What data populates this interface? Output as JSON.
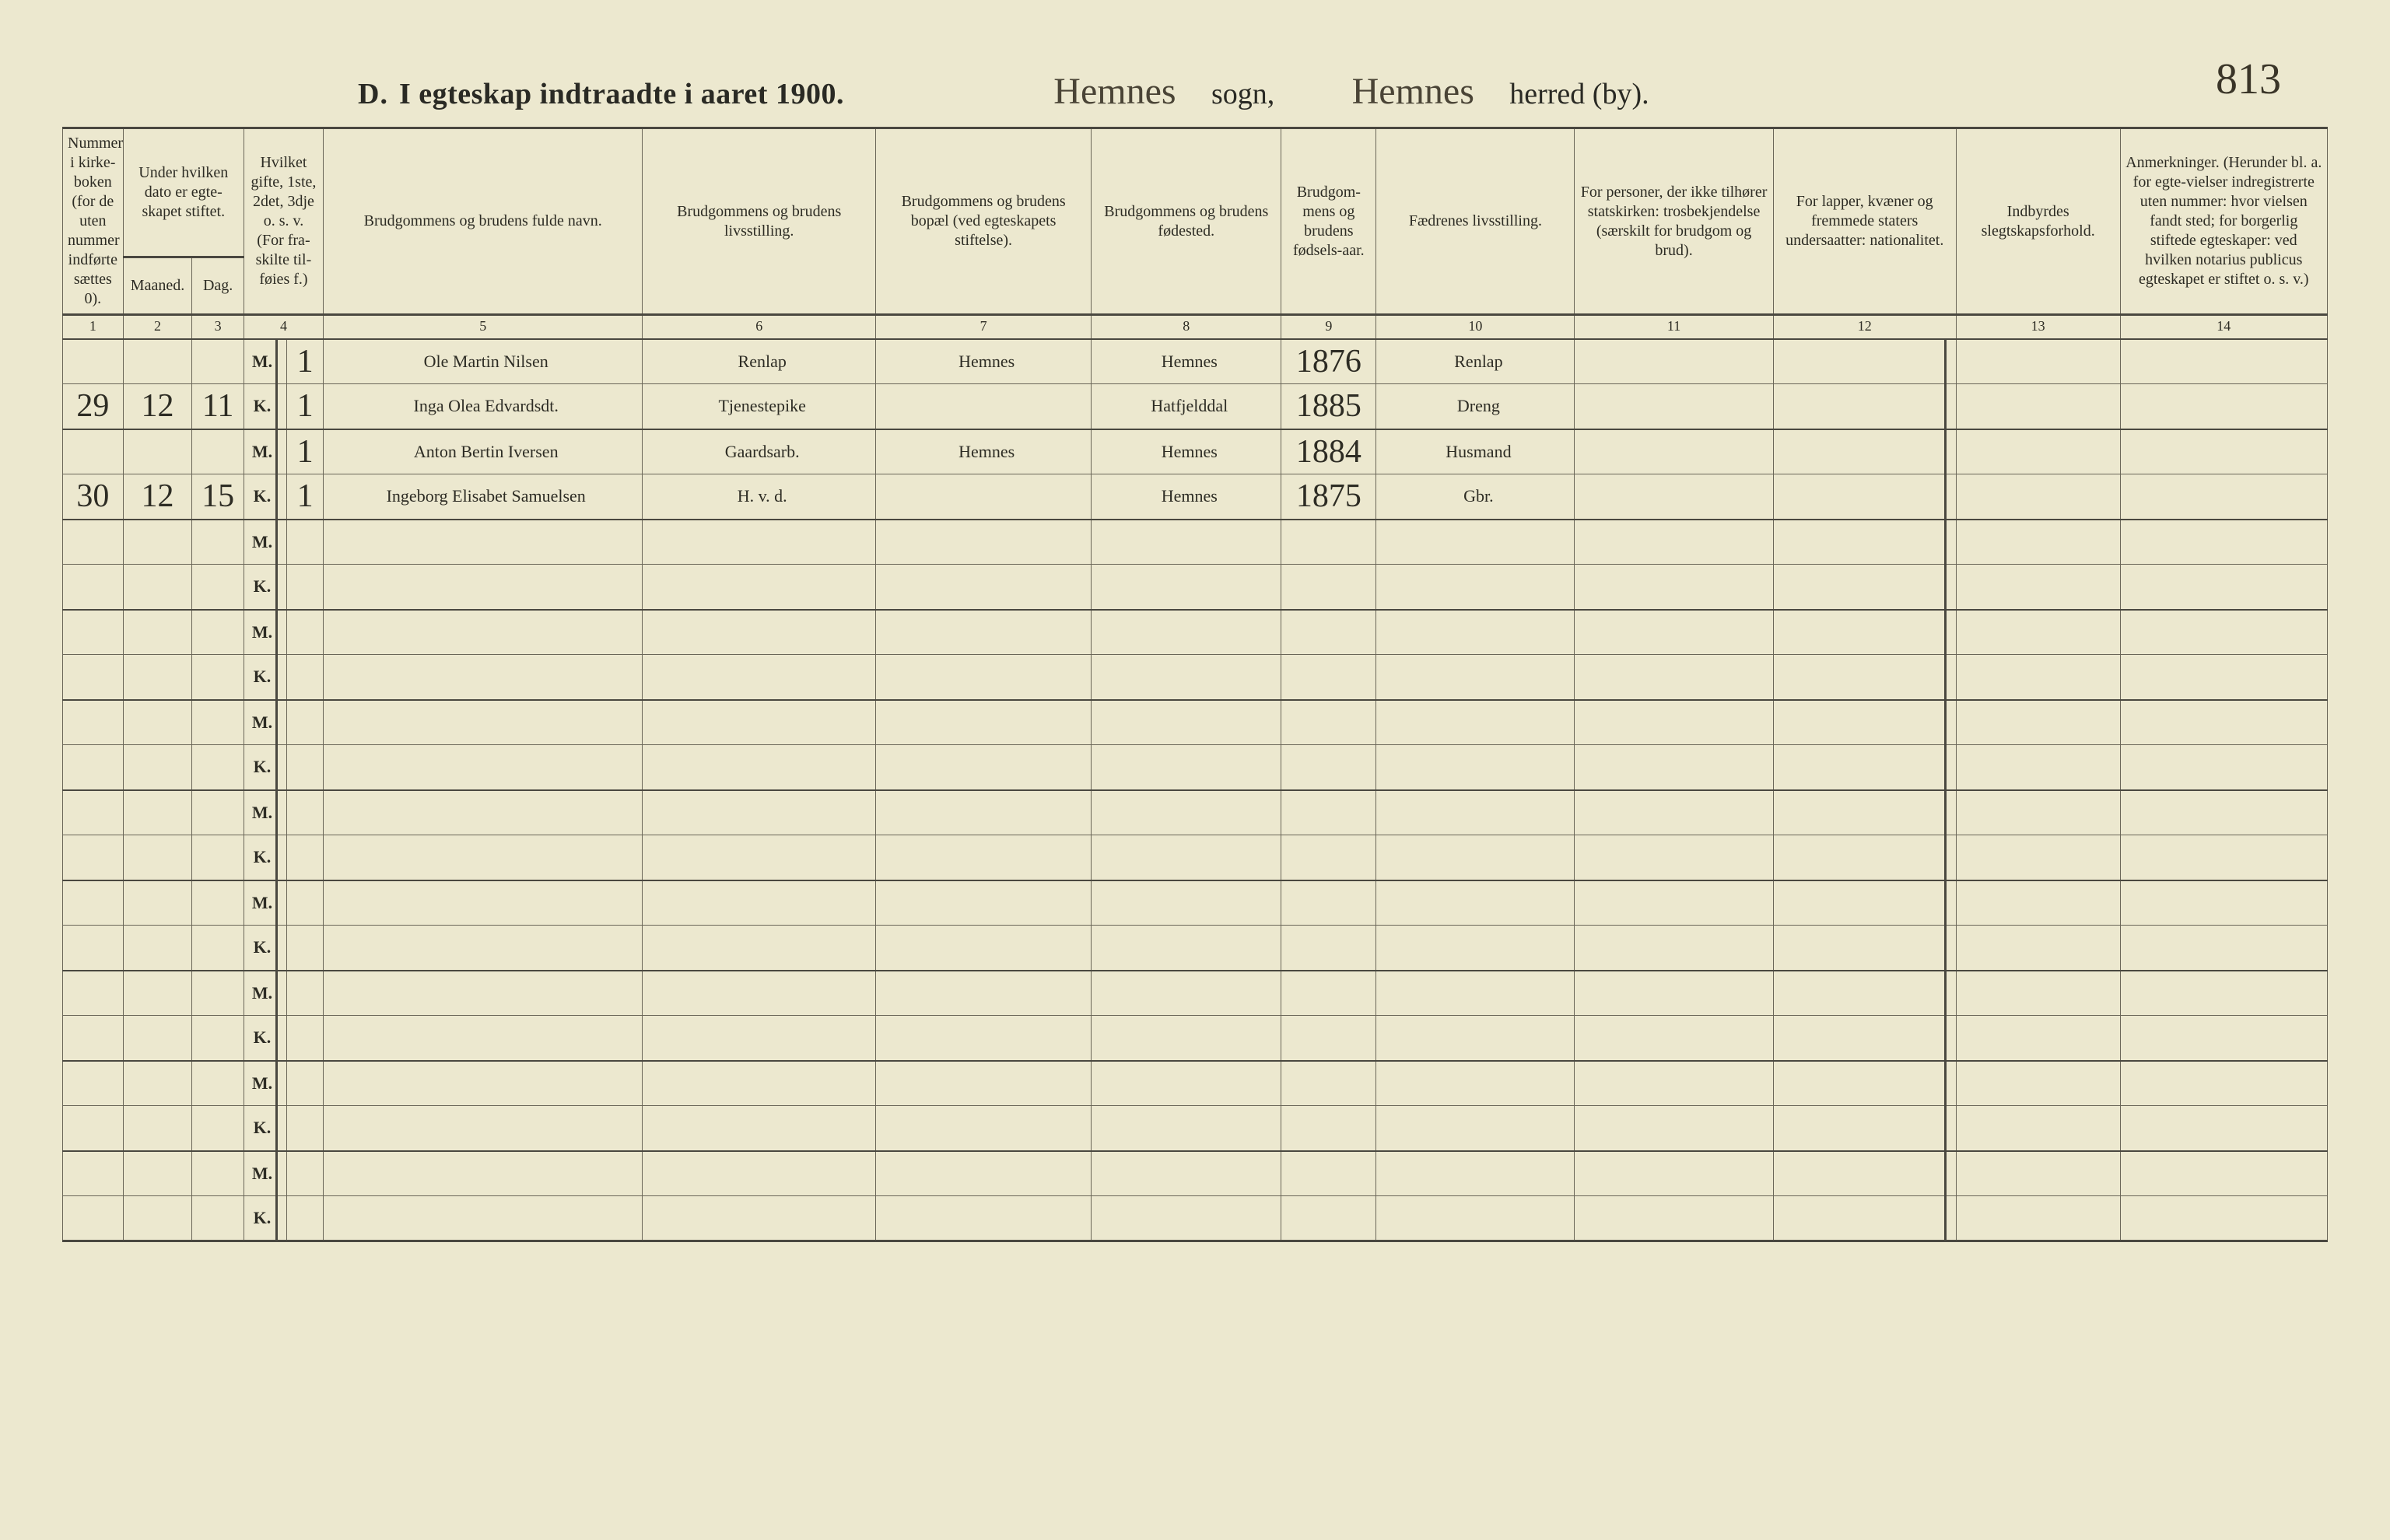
{
  "page": {
    "background_color": "#ece8cf",
    "rule_color": "#6a6658",
    "heavy_rule_color": "#4a4840",
    "text_color": "#2d2c24",
    "handwriting_color": "#3a3528",
    "page_number": "813"
  },
  "title": {
    "prefix": "D.",
    "main": "I egteskap indtraadte i aaret 19",
    "year_struck": "0",
    "year_written": "0.",
    "sogn_value": "Hemnes",
    "sogn_label": "sogn,",
    "herred_value": "Hemnes",
    "herred_label": "herred (by)."
  },
  "headers": {
    "c1": "Nummer i kirke-boken (for de uten nummer indførte sættes 0).",
    "c23_top": "Under hvilken dato er egte-skapet stiftet.",
    "c2": "Maaned.",
    "c3": "Dag.",
    "c4": "Hvilket gifte, 1ste, 2det, 3dje o. s. v. (For fra-skilte til-føies f.)",
    "c5": "Brudgommens og brudens fulde navn.",
    "c6": "Brudgommens og brudens livsstilling.",
    "c7": "Brudgommens og brudens bopæl (ved egteskapets stiftelse).",
    "c8": "Brudgommens og brudens fødested.",
    "c9": "Brudgom-mens og brudens fødsels-aar.",
    "c10": "Fædrenes livsstilling.",
    "c11": "For personer, der ikke tilhører statskirken: trosbekjendelse (særskilt for brudgom og brud).",
    "c12": "For lapper, kvæner og fremmede staters undersaatter: nationalitet.",
    "c13": "Indbyrdes slegtskapsforhold.",
    "c14": "Anmerkninger. (Herunder bl. a. for egte-vielser indregistrerte uten nummer: hvor vielsen fandt sted; for borgerlig stiftede egteskaper: ved hvilken notarius publicus egteskapet er stiftet o. s. v.)"
  },
  "colnums": [
    "1",
    "2",
    "3",
    "4",
    "5",
    "6",
    "7",
    "8",
    "9",
    "10",
    "11",
    "12",
    "13",
    "14"
  ],
  "rows": [
    {
      "num": "",
      "maaned": "",
      "dag": "",
      "mk": "M.",
      "gifte": "1",
      "navn": "Ole Martin Nilsen",
      "stilling": "Renlap",
      "bopel": "Hemnes",
      "fodested": "Hemnes",
      "aar": "1876",
      "faedre": "Renlap",
      "c11": "",
      "c12": "",
      "c13": "",
      "c14": ""
    },
    {
      "num": "29",
      "maaned": "12",
      "dag": "11",
      "mk": "K.",
      "gifte": "1",
      "navn": "Inga Olea Edvardsdt.",
      "stilling": "Tjenestepike",
      "bopel": "",
      "fodested": "Hatfjelddal",
      "aar": "1885",
      "faedre": "Dreng",
      "c11": "",
      "c12": "",
      "c13": "",
      "c14": ""
    },
    {
      "num": "",
      "maaned": "",
      "dag": "",
      "mk": "M.",
      "gifte": "1",
      "navn": "Anton Bertin Iversen",
      "stilling": "Gaardsarb.",
      "bopel": "Hemnes",
      "fodested": "Hemnes",
      "aar": "1884",
      "faedre": "Husmand",
      "c11": "",
      "c12": "",
      "c13": "",
      "c14": ""
    },
    {
      "num": "30",
      "maaned": "12",
      "dag": "15",
      "mk": "K.",
      "gifte": "1",
      "navn": "Ingeborg Elisabet Samuelsen",
      "stilling": "H. v. d.",
      "bopel": "",
      "fodested": "Hemnes",
      "aar": "1875",
      "faedre": "Gbr.",
      "c11": "",
      "c12": "",
      "c13": "",
      "c14": ""
    }
  ],
  "empty_pairs": 8,
  "mk_labels": {
    "m": "M.",
    "k": "K."
  }
}
